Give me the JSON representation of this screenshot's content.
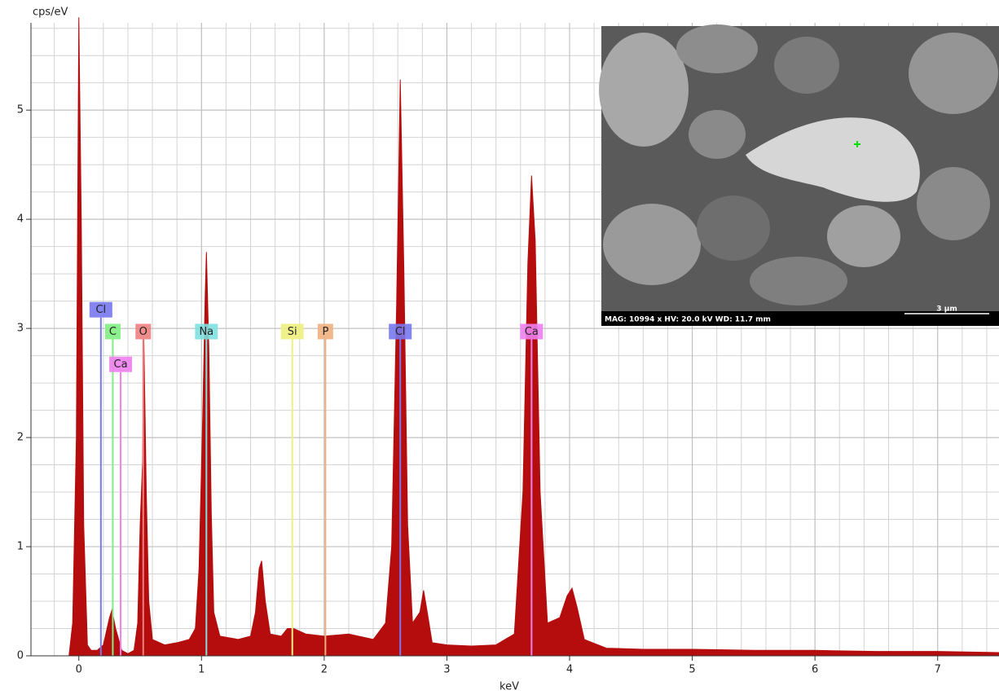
{
  "chart_data": {
    "type": "area",
    "y_label": "cps/eV",
    "x_label": "keV",
    "color": "#b50d0d",
    "xlim": [
      -0.39,
      7.5
    ],
    "ylim": [
      0,
      5.8
    ],
    "xticks": [
      0,
      1,
      2,
      3,
      4,
      5,
      6,
      7
    ],
    "yticks": [
      0,
      1,
      2,
      3,
      4,
      5
    ],
    "grid": true,
    "x": [
      -0.08,
      -0.05,
      -0.02,
      0,
      0.02,
      0.04,
      0.07,
      0.1,
      0.15,
      0.2,
      0.25,
      0.27,
      0.3,
      0.35,
      0.4,
      0.45,
      0.48,
      0.5,
      0.52,
      0.53,
      0.55,
      0.57,
      0.6,
      0.7,
      0.8,
      0.9,
      0.95,
      0.98,
      1.01,
      1.03,
      1.04,
      1.06,
      1.08,
      1.1,
      1.15,
      1.3,
      1.4,
      1.44,
      1.47,
      1.49,
      1.52,
      1.56,
      1.65,
      1.7,
      1.75,
      1.85,
      2.0,
      2.2,
      2.4,
      2.5,
      2.55,
      2.59,
      2.62,
      2.65,
      2.68,
      2.72,
      2.78,
      2.81,
      2.84,
      2.88,
      3.0,
      3.2,
      3.4,
      3.55,
      3.62,
      3.66,
      3.69,
      3.72,
      3.76,
      3.82,
      3.92,
      3.98,
      4.02,
      4.06,
      4.12,
      4.3,
      4.6,
      5.0,
      5.5,
      6.0,
      6.5,
      7.0,
      7.5
    ],
    "values": [
      0,
      0.3,
      2.0,
      5.85,
      4.0,
      1.2,
      0.1,
      0.05,
      0.05,
      0.1,
      0.35,
      0.42,
      0.25,
      0.05,
      0.02,
      0.05,
      0.3,
      1.2,
      1.78,
      2.9,
      1.5,
      0.5,
      0.15,
      0.1,
      0.12,
      0.15,
      0.25,
      0.8,
      2.2,
      3.3,
      3.7,
      2.8,
      1.3,
      0.4,
      0.18,
      0.15,
      0.18,
      0.4,
      0.8,
      0.87,
      0.5,
      0.2,
      0.18,
      0.25,
      0.25,
      0.2,
      0.18,
      0.2,
      0.15,
      0.3,
      1.0,
      3.2,
      5.28,
      3.5,
      1.2,
      0.3,
      0.4,
      0.6,
      0.4,
      0.12,
      0.1,
      0.09,
      0.1,
      0.2,
      1.5,
      3.6,
      4.4,
      3.8,
      1.5,
      0.3,
      0.35,
      0.55,
      0.62,
      0.45,
      0.15,
      0.07,
      0.06,
      0.06,
      0.05,
      0.05,
      0.04,
      0.04,
      0.03
    ],
    "elements": [
      {
        "label": "Cl",
        "x": 0.18,
        "height": 3.1,
        "color": "#7878f0"
      },
      {
        "label": "C",
        "x": 0.277,
        "height": 2.9,
        "color": "#80ee80"
      },
      {
        "label": "Ca",
        "x": 0.341,
        "height": 2.6,
        "color": "#ee80ee"
      },
      {
        "label": "O",
        "x": 0.525,
        "height": 2.9,
        "color": "#f08080"
      },
      {
        "label": "Na",
        "x": 1.04,
        "height": 2.9,
        "color": "#80e0e0"
      },
      {
        "label": "Si",
        "x": 1.74,
        "height": 2.9,
        "color": "#f0f080"
      },
      {
        "label": "P",
        "x": 2.01,
        "height": 2.9,
        "color": "#f0b080"
      },
      {
        "label": "Cl",
        "x": 2.62,
        "height": 2.9,
        "color": "#7878f0"
      },
      {
        "label": "Ca",
        "x": 3.69,
        "height": 2.9,
        "color": "#ee80ee"
      }
    ],
    "image": {
      "caption": "MAG: 10994 x  HV: 20.0 kV  WD: 11.7 mm",
      "scale": "3 µm"
    }
  }
}
